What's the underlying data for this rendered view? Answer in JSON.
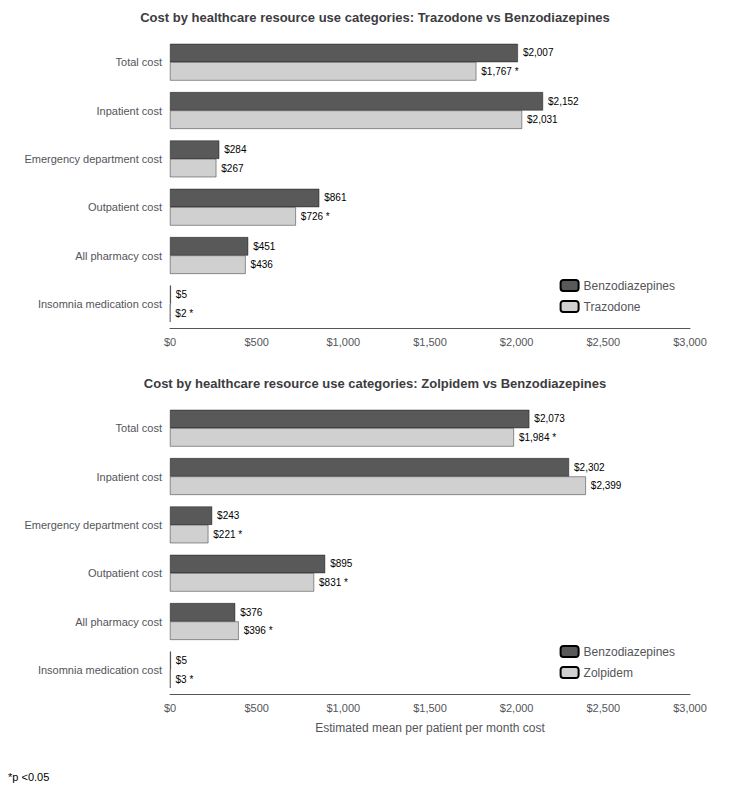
{
  "chart_data": [
    {
      "type": "bar",
      "orientation": "horizontal",
      "title": "Cost by healthcare resource use categories: Trazodone vs Benzodiazepines",
      "categories": [
        "Total cost",
        "Inpatient cost",
        "Emergency department cost",
        "Outpatient cost",
        "All pharmacy cost",
        "Insomnia medication cost"
      ],
      "series": [
        {
          "name": "Benzodiazepines",
          "color": "#595959",
          "values": [
            2007,
            2152,
            284,
            861,
            451,
            5
          ],
          "value_labels": [
            "$2,007",
            "$2,152",
            "$284",
            "$861",
            "$451",
            "$5"
          ]
        },
        {
          "name": "Trazodone",
          "color": "#d0d0d0",
          "values": [
            1767,
            2031,
            267,
            726,
            436,
            2
          ],
          "value_labels": [
            "$1,767 *",
            "$2,031",
            "$267",
            "$726 *",
            "$436",
            "$2 *"
          ]
        }
      ],
      "xlim": [
        0,
        3000
      ],
      "xticks": [
        {
          "value": 0,
          "label": "$0"
        },
        {
          "value": 500,
          "label": "$500"
        },
        {
          "value": 1000,
          "label": "$1,000"
        },
        {
          "value": 1500,
          "label": "$1,500"
        },
        {
          "value": 2000,
          "label": "$2,000"
        },
        {
          "value": 2500,
          "label": "$2,500"
        },
        {
          "value": 3000,
          "label": "$3,000"
        }
      ],
      "data_labels": true,
      "grid": false,
      "legend": "lower right"
    },
    {
      "type": "bar",
      "orientation": "horizontal",
      "title": "Cost by healthcare resource use categories: Zolpidem vs Benzodiazepines",
      "categories": [
        "Total cost",
        "Inpatient cost",
        "Emergency department cost",
        "Outpatient cost",
        "All pharmacy cost",
        "Insomnia medication cost"
      ],
      "series": [
        {
          "name": "Benzodiazepines",
          "color": "#595959",
          "values": [
            2073,
            2302,
            243,
            895,
            376,
            5
          ],
          "value_labels": [
            "$2,073",
            "$2,302",
            "$243",
            "$895",
            "$376",
            "$5"
          ]
        },
        {
          "name": "Zolpidem",
          "color": "#d0d0d0",
          "values": [
            1984,
            2399,
            221,
            831,
            396,
            3
          ],
          "value_labels": [
            "$1,984 *",
            "$2,399",
            "$221 *",
            "$831 *",
            "$396 *",
            "$3 *"
          ]
        }
      ],
      "xlim": [
        0,
        3000
      ],
      "xticks": [
        {
          "value": 0,
          "label": "$0"
        },
        {
          "value": 500,
          "label": "$500"
        },
        {
          "value": 1000,
          "label": "$1,000"
        },
        {
          "value": 1500,
          "label": "$1,500"
        },
        {
          "value": 2000,
          "label": "$2,000"
        },
        {
          "value": 2500,
          "label": "$2,500"
        },
        {
          "value": 3000,
          "label": "$3,000"
        }
      ],
      "xlabel": "Estimated mean per patient per month cost",
      "annotations": [
        "*p <0.05"
      ],
      "data_labels": true,
      "grid": false,
      "legend": "lower right"
    }
  ]
}
